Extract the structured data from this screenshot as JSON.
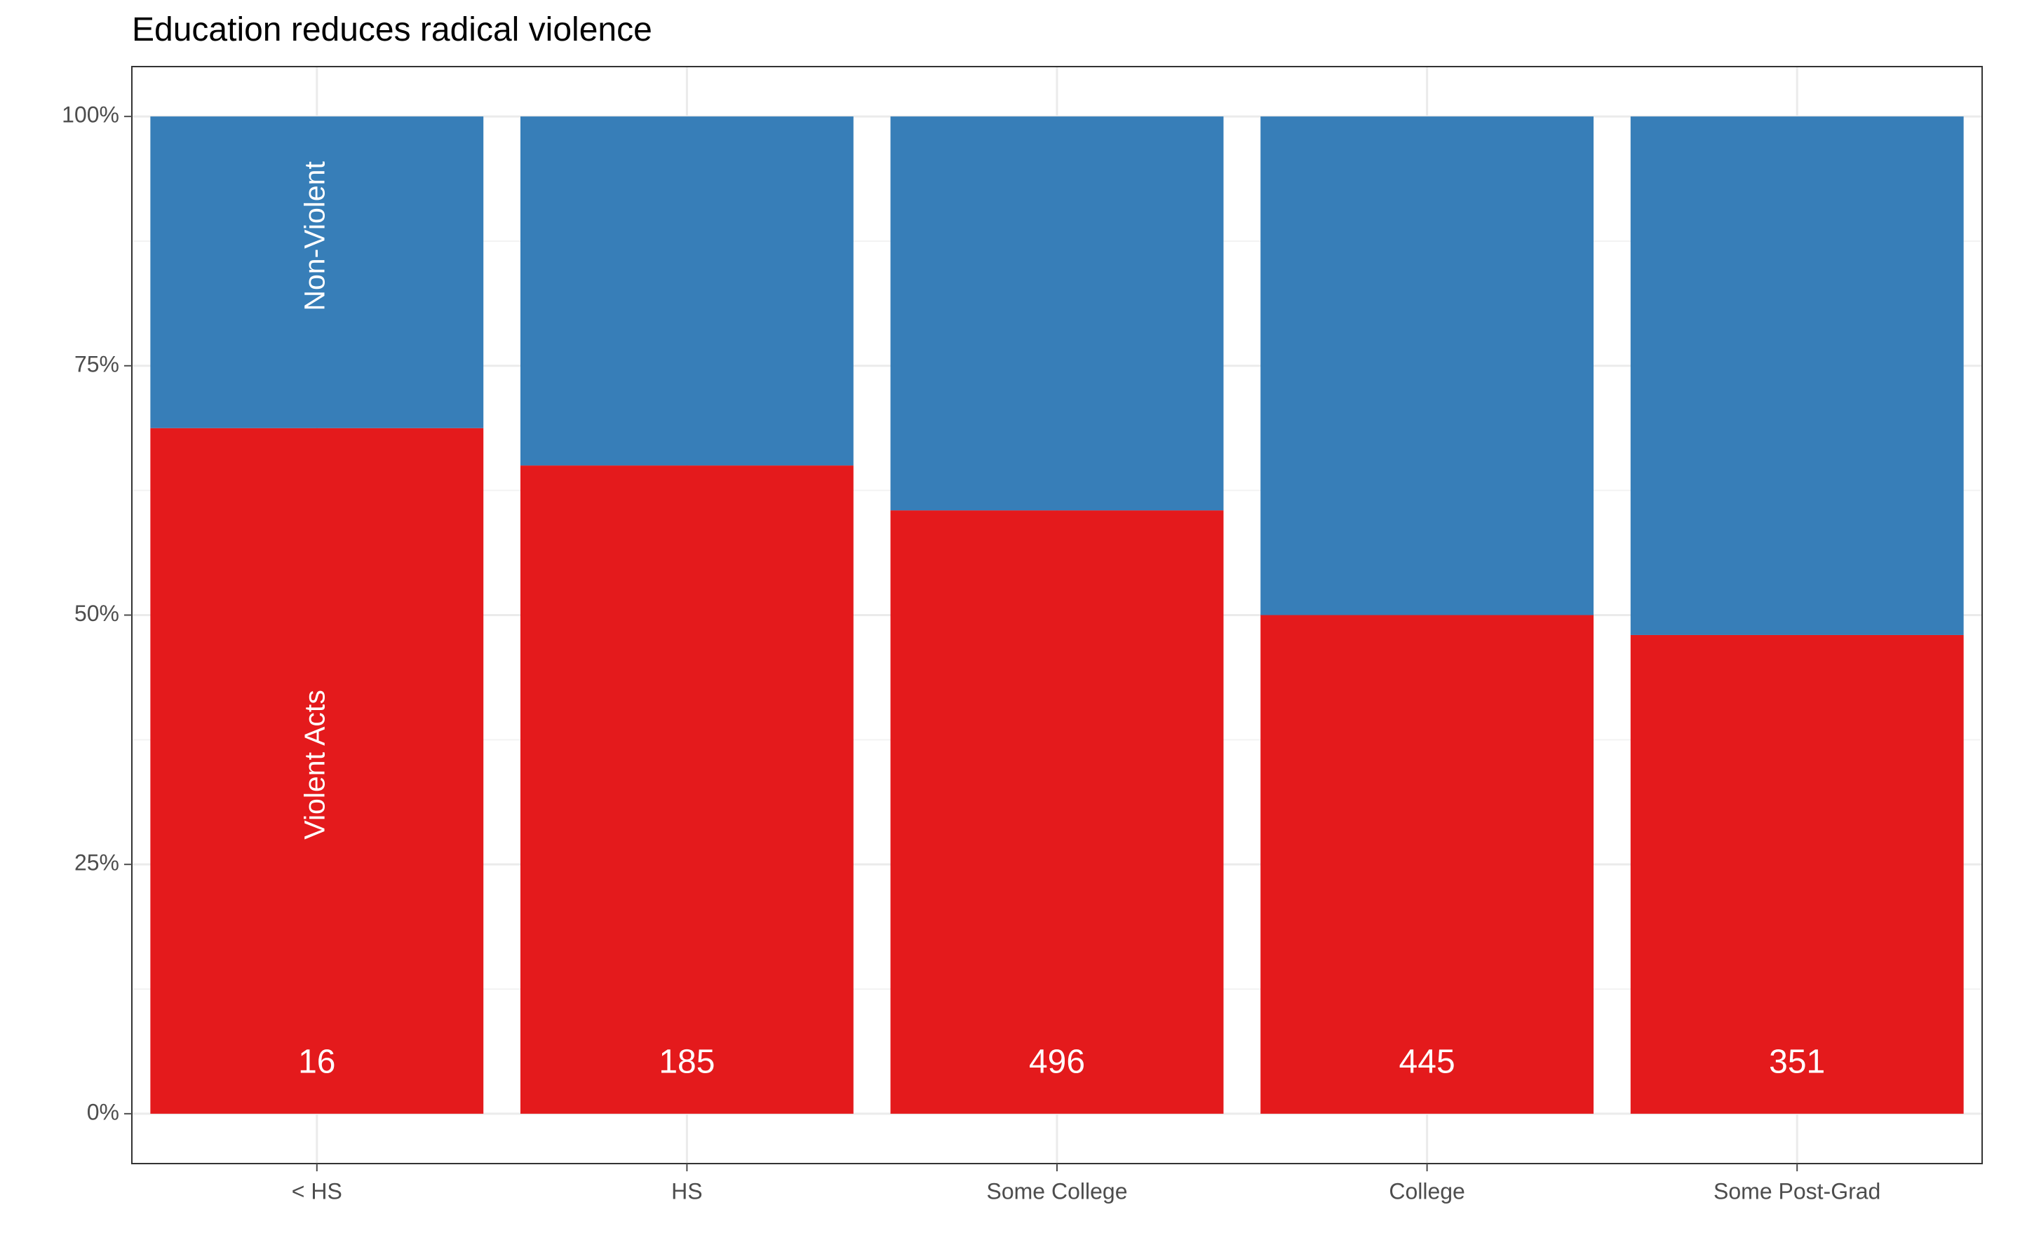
{
  "chart_data": {
    "type": "bar",
    "stacked": true,
    "normalized": true,
    "title": "Education reduces radical violence",
    "xlabel": "",
    "ylabel": "",
    "categories": [
      "< HS",
      "HS",
      "Some College",
      "College",
      "Some Post-Grad"
    ],
    "series": [
      {
        "name": "Violent Acts",
        "color": "#e41a1c",
        "values": [
          0.6875,
          0.65,
          0.605,
          0.5,
          0.48
        ]
      },
      {
        "name": "Non-Violent",
        "color": "#377eb8",
        "values": [
          0.3125,
          0.35,
          0.395,
          0.5,
          0.52
        ]
      }
    ],
    "bar_labels": [
      "16",
      "185",
      "496",
      "445",
      "351"
    ],
    "segment_labels": [
      {
        "series": "Non-Violent",
        "category": "< HS",
        "text": "Non-Violent",
        "value": 0.88
      },
      {
        "series": "Violent Acts",
        "category": "< HS",
        "text": "Violent Acts",
        "value": 0.35
      }
    ],
    "ylim": [
      -0.05,
      1.05
    ],
    "yticks": [
      0,
      0.25,
      0.5,
      0.75,
      1.0
    ],
    "ytick_labels": [
      "0%",
      "25%",
      "50%",
      "75%",
      "100%"
    ],
    "grid": true,
    "legend": "none",
    "theme_colors": {
      "panel_border": "#333333",
      "grid_major": "#ebebeb",
      "grid_minor": "#f3f3f3",
      "tick_color": "#4d4d4d",
      "text_color": "#4d4d4d",
      "background": "#ffffff"
    }
  }
}
